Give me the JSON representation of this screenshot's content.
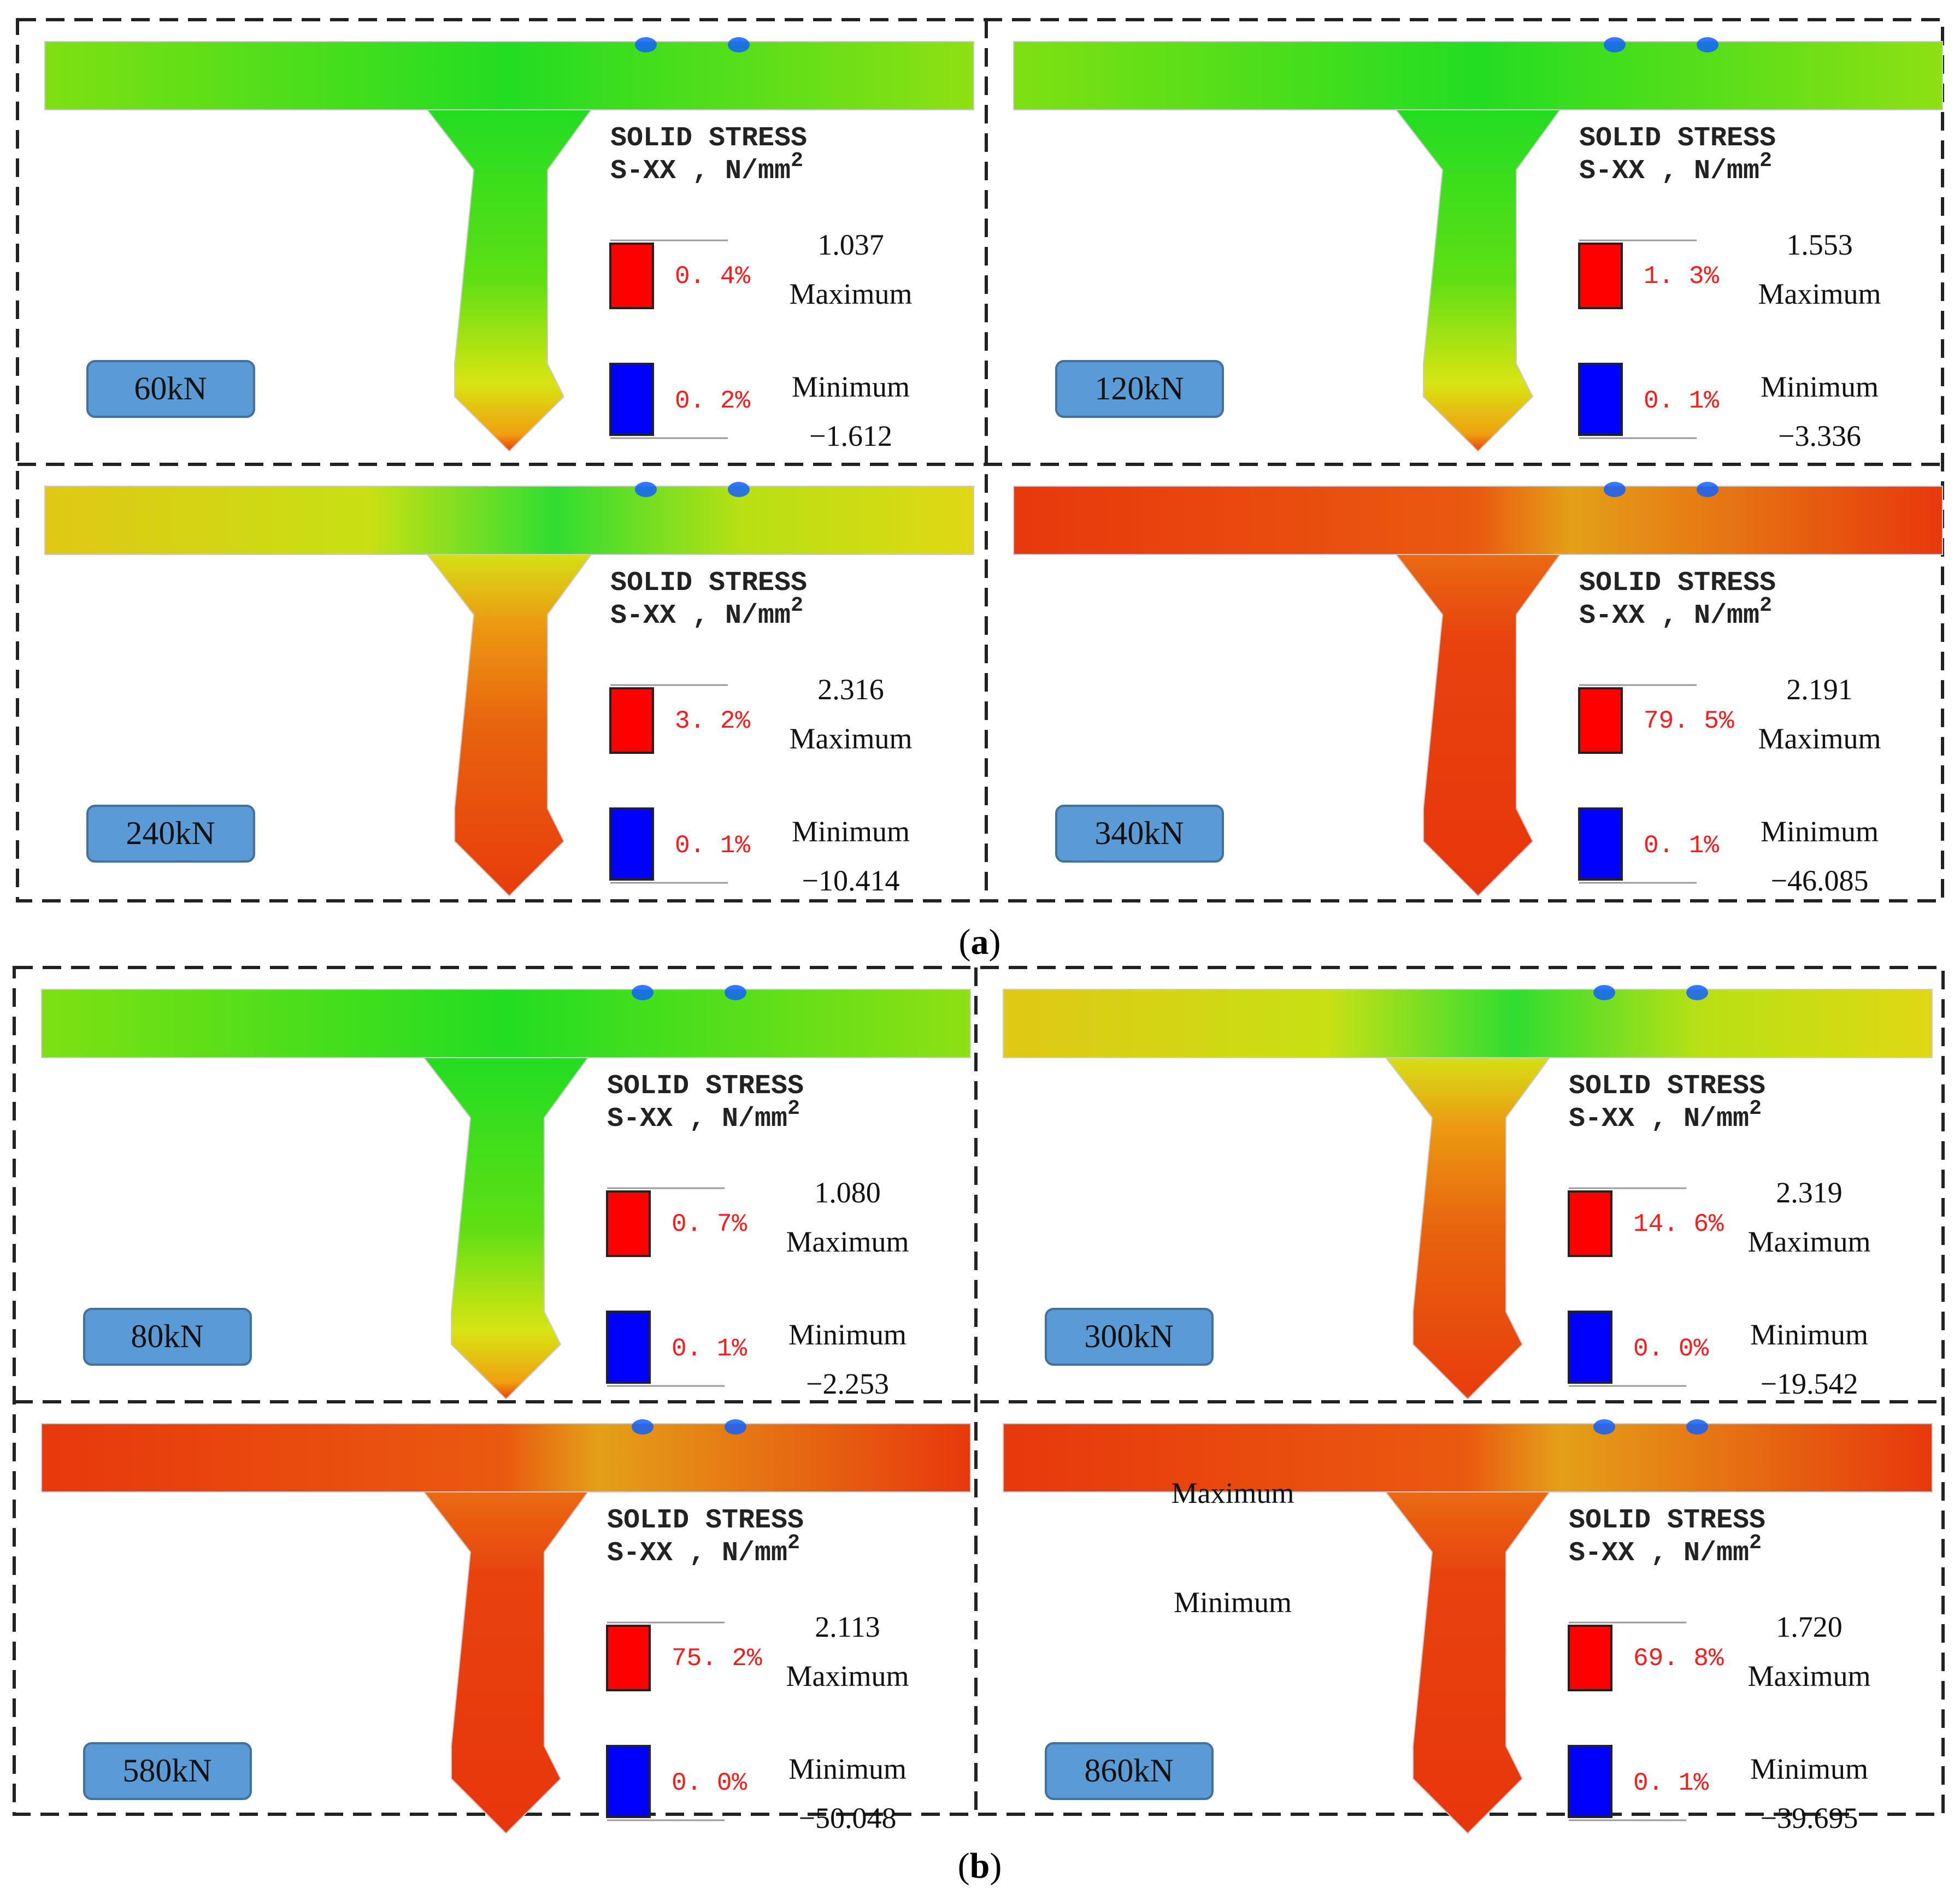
{
  "legend_title_line1": "SOLID  STRESS",
  "legend_title_line2": "S-XX  ,  N/mm",
  "legend_title_sup": "2",
  "figure_a": {
    "caption_letter": "a",
    "panels": [
      {
        "load": "60kN",
        "max_value": "1.037",
        "max_label": "Maximum",
        "max_pct": "0. 4%",
        "min_label": "Minimum",
        "min_value": "−1.612",
        "min_pct": "0. 2%",
        "stress_state": "low"
      },
      {
        "load": "120kN",
        "max_value": "1.553",
        "max_label": "Maximum",
        "max_pct": "1. 3%",
        "min_label": "Minimum",
        "min_value": "−3.336",
        "min_pct": "0. 1%",
        "stress_state": "low"
      },
      {
        "load": "240kN",
        "max_value": "2.316",
        "max_label": "Maximum",
        "max_pct": "3. 2%",
        "min_label": "Minimum",
        "min_value": "−10.414",
        "min_pct": "0. 1%",
        "stress_state": "mid"
      },
      {
        "load": "340kN",
        "max_value": "2.191",
        "max_label": "Maximum",
        "max_pct": "79. 5%",
        "min_label": "Minimum",
        "min_value": "−46.085",
        "min_pct": "0. 1%",
        "stress_state": "high"
      }
    ]
  },
  "figure_b": {
    "caption_letter": "b",
    "panels": [
      {
        "load": "80kN",
        "max_value": "1.080",
        "max_label": "Maximum",
        "max_pct": "0. 7%",
        "min_label": "Minimum",
        "min_value": "−2.253",
        "min_pct": "0. 1%",
        "stress_state": "low"
      },
      {
        "load": "300kN",
        "max_value": "2.319",
        "max_label": "Maximum",
        "max_pct": "14. 6%",
        "min_label": "Minimum",
        "min_value": "−19.542",
        "min_pct": "0. 0%",
        "stress_state": "mid"
      },
      {
        "load": "580kN",
        "max_value": "2.113",
        "max_label": "Maximum",
        "max_pct": "75. 2%",
        "min_label": "Minimum",
        "min_value": "−50.048",
        "min_pct": "0. 0%",
        "stress_state": "high"
      },
      {
        "load": "860kN",
        "max_value": "1.720",
        "max_label": "Maximum",
        "max_pct": "69. 8%",
        "min_label": "Minimum",
        "min_value": "−39.695",
        "min_pct": "0. 1%",
        "stress_state": "high",
        "extra_left_max": "Maximum",
        "extra_left_min": "Minimum"
      }
    ]
  },
  "colors": {
    "max_swatch": "#ff0000",
    "min_swatch": "#0000ff",
    "load_badge_fill": "#5b9bd5",
    "load_badge_stroke": "#41719c",
    "border_dash": "#222222"
  }
}
